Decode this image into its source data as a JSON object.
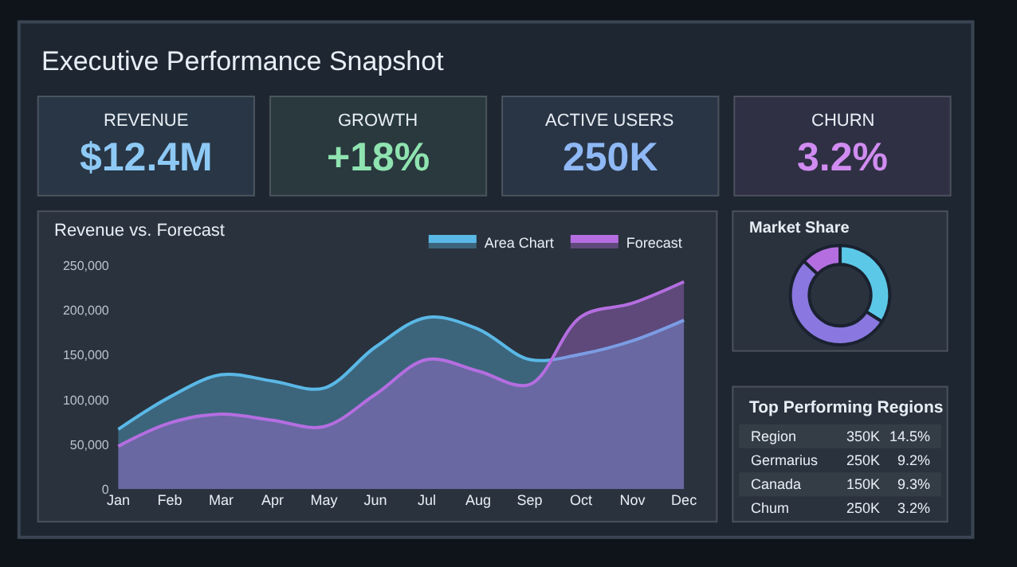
{
  "chart_data": [
    {
      "type": "other",
      "title": "Executive Performance Snapshot",
      "categories": [
        "REVENUE",
        "GROWTH",
        "ACTIVE USERS",
        "CHURN"
      ],
      "value_labels": [
        "$12.4M",
        "+18%",
        "250K",
        "3.2%"
      ],
      "colors": [
        "#8ec9f5",
        "#8fe3b0",
        "#8fb8f5",
        "#d08cf0"
      ]
    },
    {
      "type": "area",
      "title": "Revenue vs. Forecast",
      "categories": [
        "Jan",
        "Feb",
        "Mar",
        "Apr",
        "May",
        "Jun",
        "Jul",
        "Aug",
        "Sep",
        "Oct",
        "Nov",
        "Dec"
      ],
      "series": [
        {
          "name": "Area Chart",
          "color": "#5ab8e6",
          "values": [
            67000,
            103000,
            128000,
            121000,
            113000,
            159000,
            192000,
            179000,
            145000,
            151000,
            166000,
            189000
          ]
        },
        {
          "name": "Forecast",
          "color": "#b46ee0",
          "values": [
            48000,
            74000,
            84000,
            77000,
            70000,
            106000,
            145000,
            132000,
            117000,
            193000,
            208000,
            232000
          ]
        }
      ],
      "ylim": [
        0,
        250000
      ],
      "yticks": [
        0,
        {
          "value": 50000,
          "label": "50,000"
        },
        {
          "value": 100000,
          "label": "100,000"
        },
        {
          "value": 150000,
          "label": "150,000"
        },
        {
          "value": 200000,
          "label": "200,000"
        },
        {
          "value": 250000,
          "label": "250,000"
        }
      ],
      "legend": "top right"
    },
    {
      "type": "donut",
      "title": "Market Share",
      "categories": [
        null,
        null,
        null
      ],
      "values": [
        34,
        53,
        13
      ],
      "colors": [
        "#5cc8e8",
        "#8a78e0",
        "#b46ee0"
      ]
    },
    {
      "type": "other",
      "title": "Top Performing Regions",
      "categories": [
        "Region",
        "Germarius",
        "Canada",
        "Chum"
      ],
      "cell_labels": [
        [
          "350K",
          "14.5%"
        ],
        [
          "250K",
          "9.2%"
        ],
        [
          "150K",
          "9.3%"
        ],
        [
          "250K",
          "3.2%"
        ]
      ]
    }
  ]
}
